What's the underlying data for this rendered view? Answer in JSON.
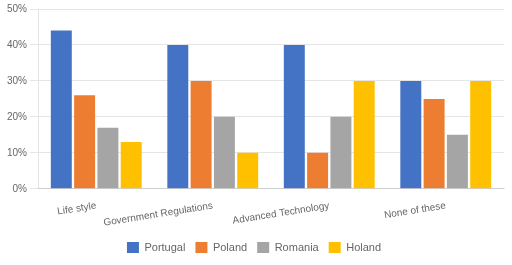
{
  "chart_data": {
    "type": "bar",
    "categories": [
      "Life style",
      "Government Regulations",
      "Advanced Technology",
      "None of these"
    ],
    "series": [
      {
        "name": "Portugal",
        "color": "#4472C4",
        "values": [
          44,
          40,
          40,
          30
        ]
      },
      {
        "name": "Poland",
        "color": "#ED7D31",
        "values": [
          26,
          30,
          10,
          25
        ]
      },
      {
        "name": "Romania",
        "color": "#A5A5A5",
        "values": [
          17,
          20,
          20,
          15
        ]
      },
      {
        "name": "Holand",
        "color": "#FFC000",
        "values": [
          13,
          10,
          30,
          30
        ]
      }
    ],
    "ylim": [
      0,
      50
    ],
    "yticks": [
      {
        "value": 0,
        "label": "0%"
      },
      {
        "value": 10,
        "label": "10%"
      },
      {
        "value": 20,
        "label": "20%"
      },
      {
        "value": 30,
        "label": "30%"
      },
      {
        "value": 40,
        "label": "40%"
      },
      {
        "value": 50,
        "label": "50%"
      }
    ],
    "grid": true,
    "legend": "bottom"
  }
}
